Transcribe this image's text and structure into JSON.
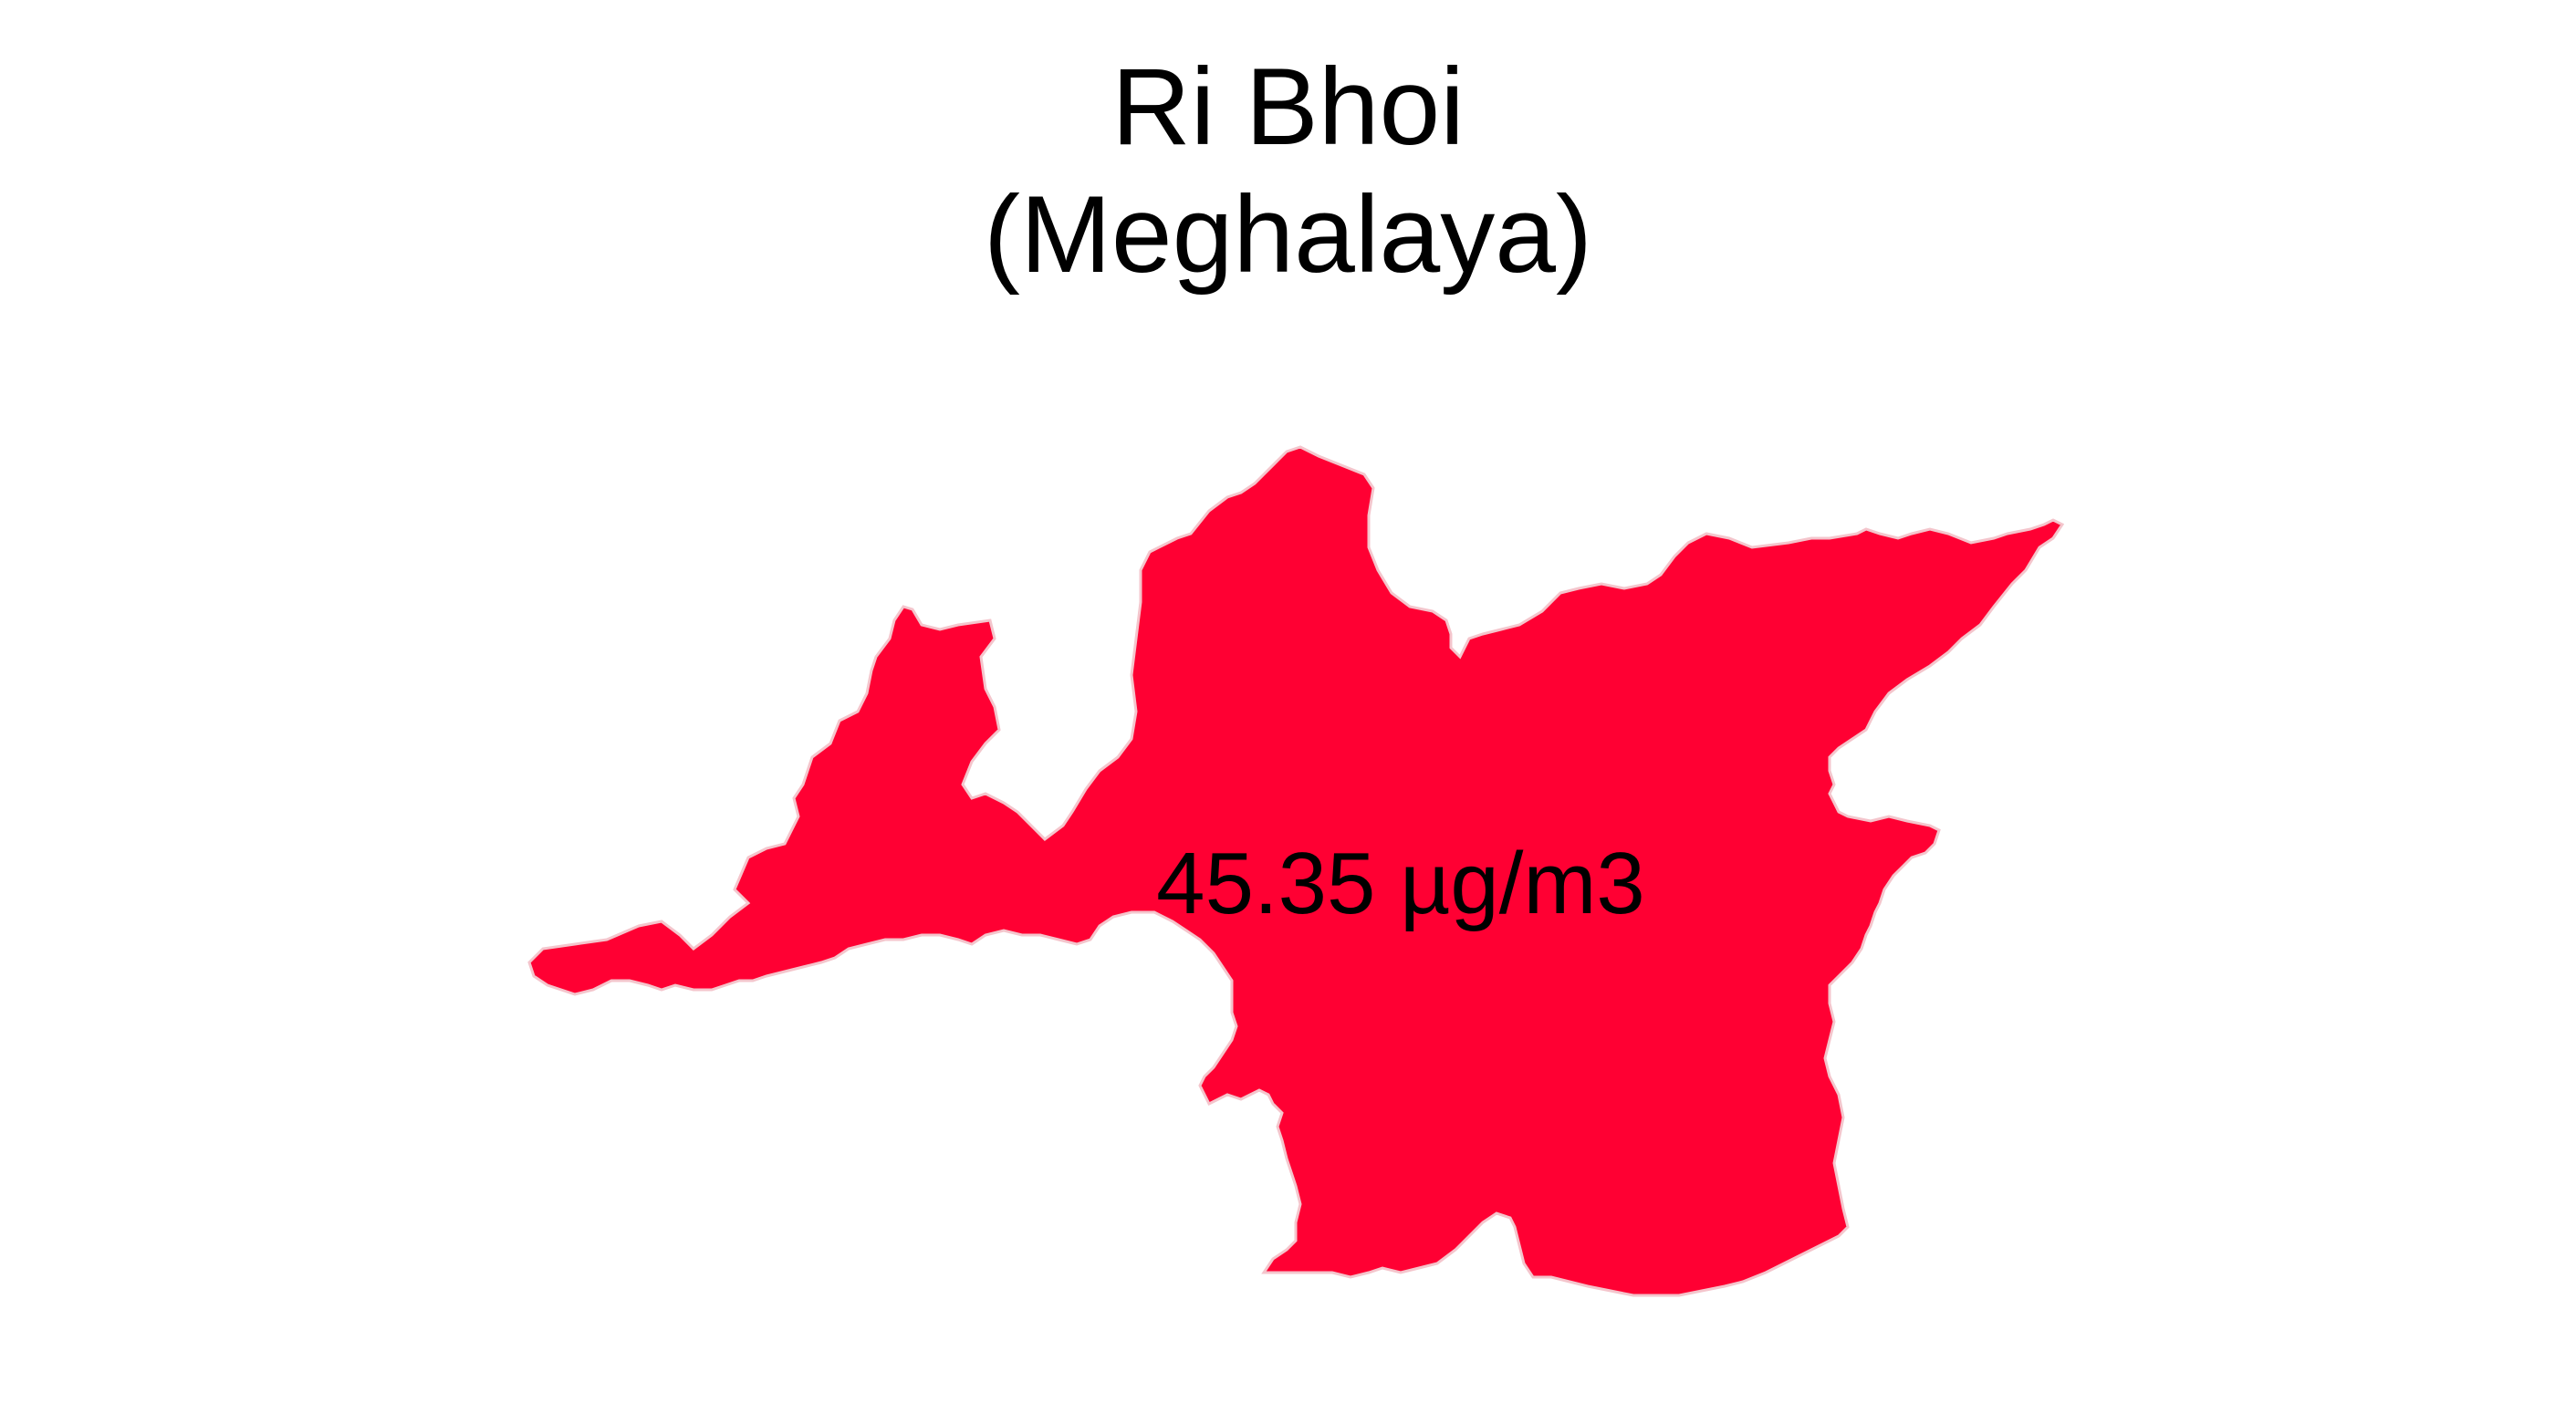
{
  "map": {
    "title_line1": "Ri Bhoi",
    "title_line2": "(Meghalaya)",
    "region_name": "Ri Bhoi",
    "value_label": "45.35 µg/m3",
    "value": 45.35,
    "unit": "µg/m3",
    "fill_color": "#FF0033",
    "border_color": "#F4C5CC",
    "background": "#FFFFFF"
  }
}
